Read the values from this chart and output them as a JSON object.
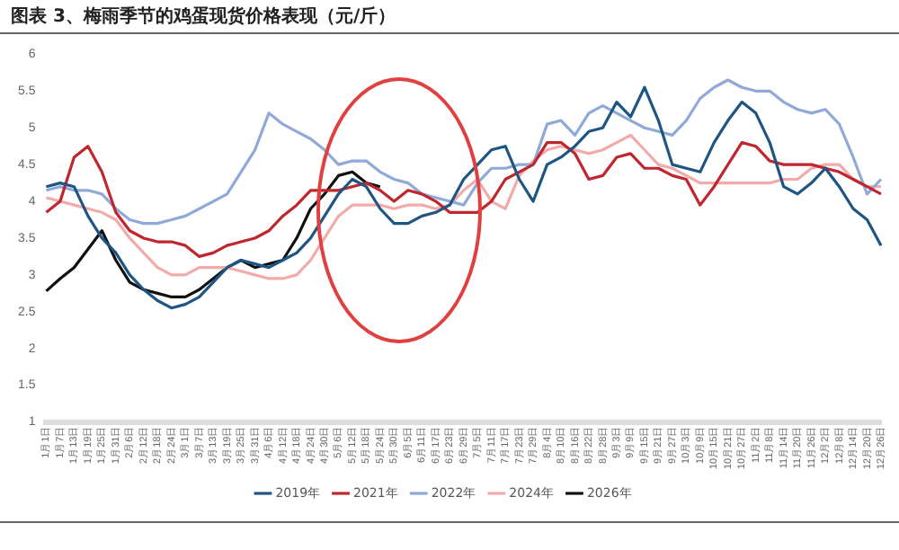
{
  "chart_data": {
    "type": "line",
    "title": "图表 3、梅雨季节的鸡蛋现货价格表现（元/斤）",
    "categories": [
      "1月1日",
      "1月7日",
      "1月13日",
      "1月19日",
      "1月25日",
      "1月31日",
      "2月6日",
      "2月12日",
      "2月18日",
      "2月24日",
      "3月1日",
      "3月7日",
      "3月13日",
      "3月19日",
      "3月25日",
      "3月31日",
      "4月6日",
      "4月12日",
      "4月18日",
      "4月24日",
      "4月30日",
      "5月6日",
      "5月12日",
      "5月18日",
      "5月24日",
      "5月30日",
      "6月5日",
      "6月11日",
      "6月17日",
      "6月23日",
      "6月29日",
      "7月5日",
      "7月11日",
      "7月17日",
      "7月23日",
      "7月29日",
      "8月4日",
      "8月10日",
      "8月16日",
      "8月22日",
      "8月28日",
      "9月3日",
      "9月9日",
      "9月15日",
      "9月21日",
      "9月27日",
      "10月3日",
      "10月9日",
      "10月15日",
      "10月21日",
      "10月27日",
      "11月2日",
      "11月8日",
      "11月14日",
      "11月20日",
      "11月26日",
      "12月2日",
      "12月8日",
      "12月14日",
      "12月20日",
      "12月26日"
    ],
    "series": [
      {
        "name": "2019年",
        "color": "#1f5582",
        "values": [
          4.2,
          4.25,
          4.2,
          3.8,
          3.5,
          3.3,
          3.0,
          2.8,
          2.65,
          2.55,
          2.6,
          2.7,
          2.9,
          3.1,
          3.2,
          3.15,
          3.1,
          3.2,
          3.3,
          3.5,
          3.8,
          4.1,
          4.3,
          4.2,
          3.9,
          3.7,
          3.7,
          3.8,
          3.85,
          3.95,
          4.3,
          4.5,
          4.7,
          4.75,
          4.3,
          4.0,
          4.5,
          4.6,
          4.75,
          4.95,
          5.0,
          5.35,
          5.15,
          5.55,
          5.1,
          4.5,
          4.45,
          4.4,
          4.8,
          5.1,
          5.35,
          5.2,
          4.8,
          4.2,
          4.1,
          4.25,
          4.45,
          4.2,
          3.9,
          3.75,
          3.4
        ]
      },
      {
        "name": "2021年",
        "color": "#c0262d",
        "values": [
          3.85,
          4.0,
          4.6,
          4.75,
          4.4,
          3.85,
          3.6,
          3.5,
          3.45,
          3.45,
          3.4,
          3.25,
          3.3,
          3.4,
          3.45,
          3.5,
          3.6,
          3.8,
          3.95,
          4.15,
          4.15,
          4.15,
          4.2,
          4.25,
          4.15,
          4.0,
          4.15,
          4.1,
          4.0,
          3.85,
          3.85,
          3.85,
          4.0,
          4.3,
          4.4,
          4.5,
          4.8,
          4.8,
          4.65,
          4.3,
          4.35,
          4.6,
          4.65,
          4.45,
          4.45,
          4.35,
          4.3,
          3.95,
          4.2,
          4.5,
          4.8,
          4.75,
          4.55,
          4.5,
          4.5,
          4.5,
          4.45,
          4.4,
          4.3,
          4.2,
          4.1
        ]
      },
      {
        "name": "2022年",
        "color": "#8fa9d8",
        "values": [
          4.15,
          4.2,
          4.15,
          4.15,
          4.1,
          3.9,
          3.75,
          3.7,
          3.7,
          3.75,
          3.8,
          3.9,
          4.0,
          4.1,
          4.4,
          4.7,
          5.2,
          5.05,
          4.95,
          4.85,
          4.7,
          4.5,
          4.55,
          4.55,
          4.4,
          4.3,
          4.25,
          4.1,
          4.05,
          4.0,
          3.95,
          4.25,
          4.45,
          4.45,
          4.5,
          4.5,
          5.05,
          5.1,
          4.9,
          5.2,
          5.3,
          5.2,
          5.1,
          5.0,
          4.95,
          4.9,
          5.1,
          5.4,
          5.55,
          5.65,
          5.55,
          5.5,
          5.5,
          5.35,
          5.25,
          5.2,
          5.25,
          5.05,
          4.6,
          4.1,
          4.3
        ]
      },
      {
        "name": "2024年",
        "color": "#f2aaaa",
        "values": [
          4.05,
          4.0,
          3.95,
          3.9,
          3.85,
          3.75,
          3.5,
          3.3,
          3.1,
          3.0,
          3.0,
          3.1,
          3.1,
          3.1,
          3.05,
          3.0,
          2.95,
          2.95,
          3.0,
          3.2,
          3.5,
          3.8,
          3.95,
          3.95,
          3.95,
          3.9,
          3.95,
          3.95,
          3.9,
          3.95,
          4.15,
          4.3,
          4.0,
          3.9,
          4.35,
          4.55,
          4.7,
          4.75,
          4.7,
          4.65,
          4.7,
          4.8,
          4.9,
          4.7,
          4.5,
          4.45,
          4.35,
          4.25,
          4.25,
          4.25,
          4.25,
          4.25,
          4.25,
          4.3,
          4.3,
          4.45,
          4.5,
          4.5,
          4.3,
          4.2,
          4.2
        ]
      },
      {
        "name": "2026年",
        "color": "#111111",
        "values": [
          2.78,
          2.95,
          3.1,
          3.35,
          3.6,
          3.2,
          2.9,
          2.8,
          2.75,
          2.7,
          2.7,
          2.8,
          2.95,
          3.1,
          3.2,
          3.1,
          3.15,
          3.2,
          3.5,
          3.9,
          4.1,
          4.35,
          4.4,
          4.25,
          4.2,
          null,
          null,
          null,
          null,
          null,
          null,
          null,
          null,
          null,
          null,
          null,
          null,
          null,
          null,
          null,
          null,
          null,
          null,
          null,
          null,
          null,
          null,
          null,
          null,
          null,
          null,
          null,
          null,
          null,
          null,
          null,
          null,
          null,
          null,
          null,
          null
        ]
      }
    ],
    "ylim": [
      1,
      6
    ],
    "yticks": [
      1,
      1.5,
      2,
      2.5,
      3,
      3.5,
      4,
      4.5,
      5,
      5.5,
      6
    ],
    "grid": false,
    "legend": "bottom",
    "marker": "none",
    "line_style": "solid"
  }
}
